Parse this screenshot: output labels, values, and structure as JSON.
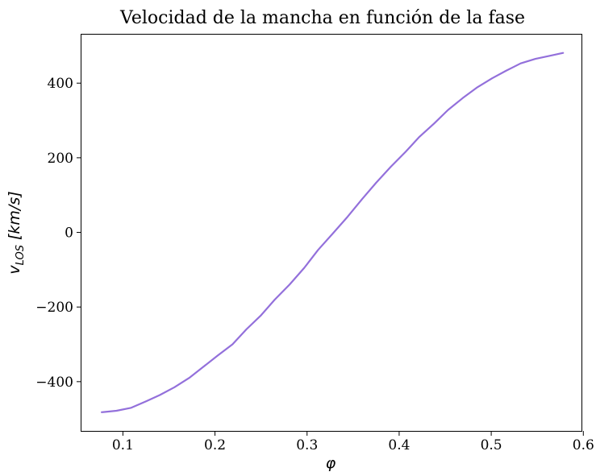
{
  "chart_data": {
    "type": "line",
    "title": "Velocidad de la mancha en función de la fase",
    "xlabel": "φ",
    "ylabel": "v_LOS [km/s]",
    "xlim": [
      0.055,
      0.598
    ],
    "ylim": [
      -532,
      530
    ],
    "grid": false,
    "legend": "none",
    "x_ticks": [
      0.1,
      0.2,
      0.3,
      0.4,
      0.5,
      0.6
    ],
    "x_tick_labels": [
      "0.1",
      "0.2",
      "0.3",
      "0.4",
      "0.5",
      "0.6"
    ],
    "y_ticks": [
      -400,
      -200,
      0,
      200,
      400
    ],
    "y_tick_labels": [
      "−400",
      "−200",
      "0",
      "200",
      "400"
    ],
    "series": [
      {
        "color": "#9370DB",
        "x": [
          0.077,
          0.093,
          0.109,
          0.125,
          0.14,
          0.156,
          0.172,
          0.187,
          0.203,
          0.219,
          0.234,
          0.25,
          0.265,
          0.281,
          0.297,
          0.312,
          0.328,
          0.344,
          0.36,
          0.375,
          0.391,
          0.407,
          0.422,
          0.438,
          0.453,
          0.469,
          0.485,
          0.501,
          0.516,
          0.532,
          0.548,
          0.563,
          0.578
        ],
        "y": [
          -482,
          -478,
          -470,
          -453,
          -436,
          -415,
          -390,
          -361,
          -330,
          -300,
          -260,
          -222,
          -180,
          -140,
          -95,
          -47,
          -3,
          42,
          90,
          133,
          176,
          216,
          256,
          292,
          328,
          360,
          389,
          413,
          433,
          453,
          465,
          473,
          481
        ]
      }
    ]
  }
}
